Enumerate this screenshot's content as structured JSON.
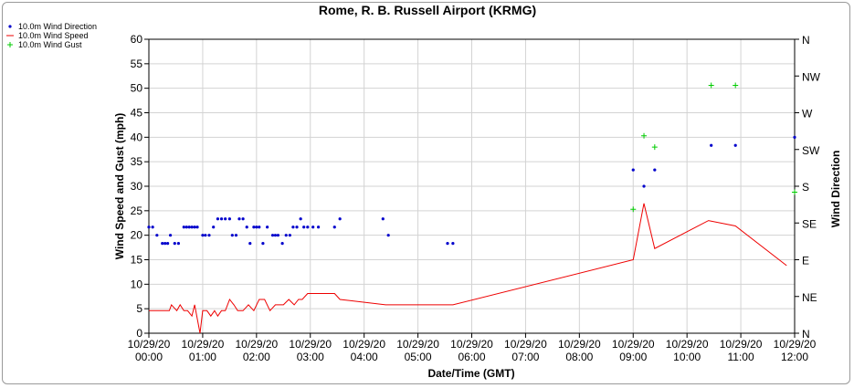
{
  "chart_data": {
    "type": "line",
    "title": "Rome, R. B. Russell Airport (KRMG)",
    "xlabel": "Date/Time (GMT)",
    "ylabel": "Wind Speed and Gust (mph)",
    "y2label": "Wind Direction",
    "xlim": [
      0,
      12
    ],
    "ylim": [
      0,
      60
    ],
    "y2lim": [
      0,
      360
    ],
    "x_ticks": [
      {
        "x": 0,
        "date": "10/29/20",
        "time": "00:00"
      },
      {
        "x": 1,
        "date": "10/29/20",
        "time": "01:00"
      },
      {
        "x": 2,
        "date": "10/29/20",
        "time": "02:00"
      },
      {
        "x": 3,
        "date": "10/29/20",
        "time": "03:00"
      },
      {
        "x": 4,
        "date": "10/29/20",
        "time": "04:00"
      },
      {
        "x": 5,
        "date": "10/29/20",
        "time": "05:00"
      },
      {
        "x": 6,
        "date": "10/29/20",
        "time": "06:00"
      },
      {
        "x": 7,
        "date": "10/29/20",
        "time": "07:00"
      },
      {
        "x": 8,
        "date": "10/29/20",
        "time": "08:00"
      },
      {
        "x": 9,
        "date": "10/29/20",
        "time": "09:00"
      },
      {
        "x": 10,
        "date": "10/29/20",
        "time": "10:00"
      },
      {
        "x": 11,
        "date": "10/29/20",
        "time": "11:00"
      },
      {
        "x": 12,
        "date": "10/29/20",
        "time": "12:00"
      }
    ],
    "y_ticks": [
      0,
      5,
      10,
      15,
      20,
      25,
      30,
      35,
      40,
      45,
      50,
      55,
      60
    ],
    "y2_ticks": [
      {
        "value": 0,
        "label": "N"
      },
      {
        "value": 45,
        "label": "NE"
      },
      {
        "value": 90,
        "label": "E"
      },
      {
        "value": 135,
        "label": "SE"
      },
      {
        "value": 180,
        "label": "S"
      },
      {
        "value": 225,
        "label": "SW"
      },
      {
        "value": 270,
        "label": "W"
      },
      {
        "value": 315,
        "label": "NW"
      },
      {
        "value": 360,
        "label": "N"
      }
    ],
    "grid": true,
    "legend_position": "top-left",
    "series": [
      {
        "name": "10.0m Wind Direction",
        "kind": "scatter",
        "marker": "dot",
        "axis": "right",
        "color": "#0000cc",
        "x": [
          0.0,
          0.07,
          0.15,
          0.25,
          0.3,
          0.35,
          0.4,
          0.48,
          0.55,
          0.65,
          0.7,
          0.75,
          0.8,
          0.85,
          0.9,
          1.0,
          1.05,
          1.12,
          1.2,
          1.28,
          1.35,
          1.42,
          1.5,
          1.55,
          1.62,
          1.68,
          1.75,
          1.82,
          1.88,
          1.95,
          2.0,
          2.05,
          2.12,
          2.2,
          2.3,
          2.35,
          2.4,
          2.48,
          2.55,
          2.62,
          2.68,
          2.75,
          2.82,
          2.88,
          2.95,
          3.05,
          3.15,
          3.45,
          3.55,
          4.35,
          4.45,
          5.55,
          5.65,
          9.0,
          9.2,
          9.4,
          10.45,
          10.9,
          12.0
        ],
        "y": [
          130,
          130,
          120,
          110,
          110,
          110,
          120,
          110,
          110,
          130,
          130,
          130,
          130,
          130,
          130,
          120,
          120,
          120,
          130,
          140,
          140,
          140,
          140,
          120,
          120,
          140,
          140,
          130,
          110,
          130,
          130,
          130,
          110,
          130,
          120,
          120,
          120,
          110,
          120,
          120,
          130,
          130,
          140,
          130,
          130,
          130,
          130,
          130,
          140,
          140,
          120,
          110,
          110,
          200,
          180,
          200,
          230,
          230,
          240
        ]
      },
      {
        "name": "10.0m Wind Speed",
        "kind": "line",
        "axis": "left",
        "color": "#ee0000",
        "x": [
          0.0,
          0.38,
          0.42,
          0.52,
          0.58,
          0.65,
          0.72,
          0.8,
          0.85,
          0.95,
          1.0,
          1.08,
          1.15,
          1.22,
          1.28,
          1.35,
          1.42,
          1.5,
          1.58,
          1.65,
          1.75,
          1.85,
          1.95,
          2.05,
          2.15,
          2.25,
          2.35,
          2.42,
          2.5,
          2.6,
          2.7,
          2.78,
          2.85,
          2.95,
          3.05,
          3.25,
          3.45,
          3.55,
          4.4,
          5.65,
          9.0,
          9.2,
          9.4,
          10.4,
          10.9,
          11.85
        ],
        "y": [
          4.6,
          4.6,
          5.8,
          4.6,
          5.8,
          4.6,
          4.6,
          3.5,
          5.8,
          0,
          4.6,
          4.6,
          3.5,
          4.6,
          3.5,
          4.6,
          4.6,
          6.9,
          5.8,
          4.6,
          4.6,
          5.8,
          4.6,
          6.9,
          6.9,
          4.6,
          5.8,
          5.8,
          5.8,
          6.9,
          5.8,
          6.9,
          6.9,
          8.1,
          8.1,
          8.1,
          8.1,
          6.9,
          5.8,
          5.8,
          15.0,
          26.5,
          17.3,
          23.0,
          21.9,
          13.8
        ]
      },
      {
        "name": "10.0m Wind Gust",
        "kind": "scatter",
        "marker": "plus",
        "axis": "left",
        "color": "#00cc00",
        "x": [
          9.0,
          9.2,
          9.4,
          10.45,
          10.9,
          12.0
        ],
        "y": [
          25.3,
          40.3,
          38.0,
          50.6,
          50.6,
          28.8
        ]
      }
    ]
  }
}
